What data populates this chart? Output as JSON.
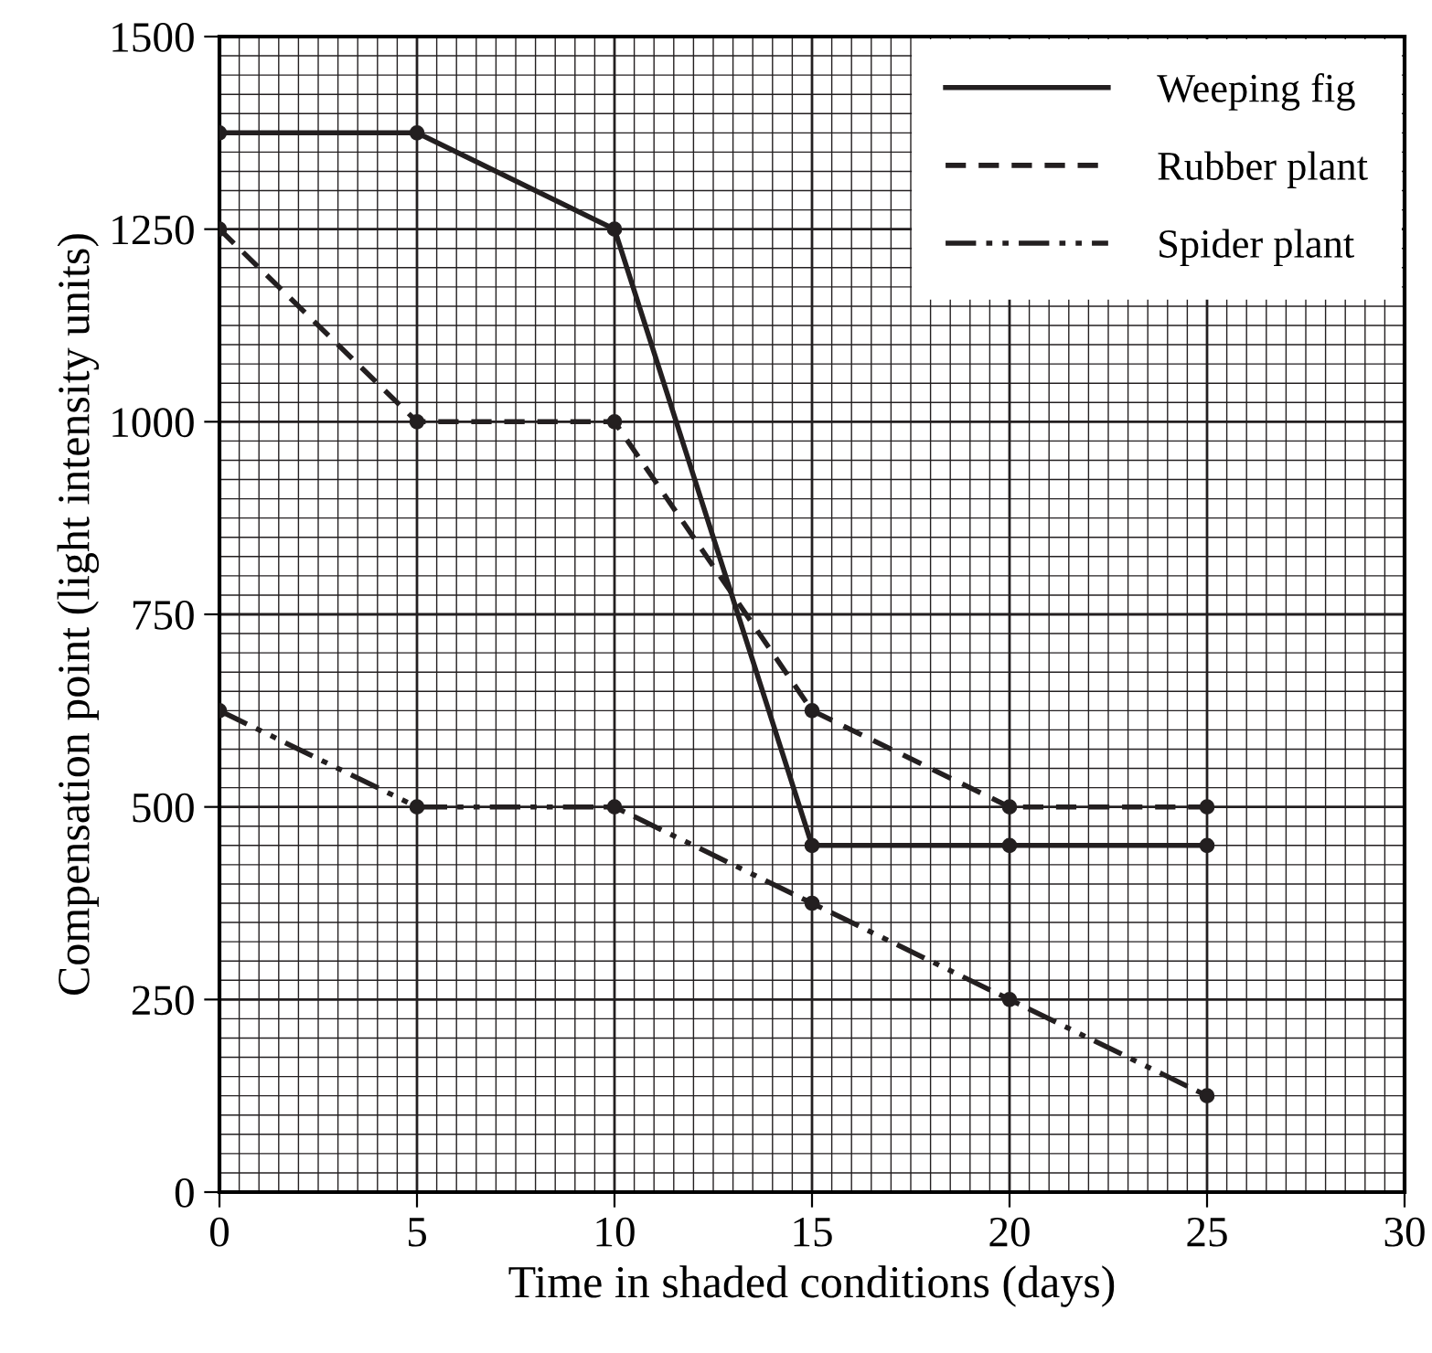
{
  "chart_data": {
    "type": "line",
    "xlabel": "Time in shaded conditions (days)",
    "ylabel": "Compensation point (light intensity units)",
    "x": [
      0,
      5,
      10,
      15,
      20,
      25
    ],
    "series": [
      {
        "name": "Weeping fig",
        "color": "#231f20",
        "line_style": "solid",
        "values": [
          1375,
          1375,
          1250,
          450,
          450,
          450
        ]
      },
      {
        "name": "Rubber plant",
        "color": "#231f20",
        "line_style": "dashed",
        "values": [
          1250,
          1000,
          1000,
          625,
          500,
          500
        ]
      },
      {
        "name": "Spider plant",
        "color": "#231f20",
        "line_style": "dashdot",
        "values": [
          625,
          500,
          500,
          375,
          250,
          125
        ]
      }
    ],
    "xlim": [
      0,
      30
    ],
    "ylim": [
      0,
      1500
    ],
    "xticks": [
      0,
      5,
      10,
      15,
      20,
      25,
      30
    ],
    "yticks": [
      0,
      250,
      500,
      750,
      1000,
      1250,
      1500
    ],
    "grid": true,
    "legend": "top right",
    "marker": "circle"
  }
}
